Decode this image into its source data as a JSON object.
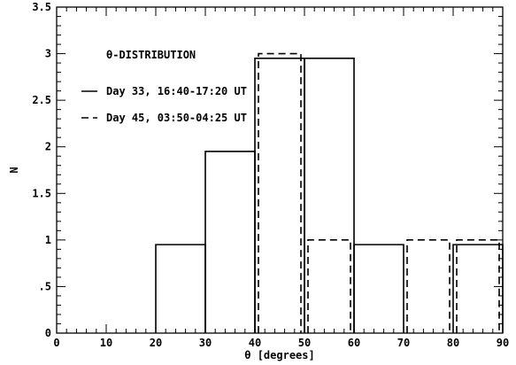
{
  "chart_data": {
    "type": "line",
    "title": "θ-DISTRIBUTION",
    "xlabel": "θ [degrees]",
    "ylabel": "N",
    "xlim": [
      0,
      90
    ],
    "ylim": [
      0,
      3.5
    ],
    "x_ticks": [
      0,
      10,
      20,
      30,
      40,
      50,
      60,
      70,
      80,
      90
    ],
    "y_ticks": [
      0,
      0.5,
      1,
      1.5,
      2,
      2.5,
      3,
      3.5
    ],
    "x_tick_labels": [
      "0",
      "10",
      "20",
      "30",
      "40",
      "50",
      "60",
      "70",
      "80",
      "90"
    ],
    "y_tick_labels": [
      "0",
      ".5",
      "1",
      "1.5",
      "2",
      "2.5",
      "3",
      "3.5"
    ],
    "grid": false,
    "legend_placement": "top-left",
    "series": [
      {
        "name": "Day 33, 16:40-17:20 UT",
        "style": "solid",
        "bin_edges": [
          0,
          10,
          20,
          30,
          40,
          50,
          60,
          70,
          80,
          90
        ],
        "values": [
          0,
          0,
          1,
          2,
          3,
          3,
          1,
          0,
          1
        ]
      },
      {
        "name": "Day 45, 03:50-04:25 UT",
        "style": "dashed",
        "bin_edges": [
          0,
          10,
          20,
          30,
          40,
          50,
          60,
          70,
          80,
          90
        ],
        "values": [
          0,
          0,
          0,
          0,
          3,
          1,
          0,
          1,
          1
        ]
      }
    ]
  }
}
